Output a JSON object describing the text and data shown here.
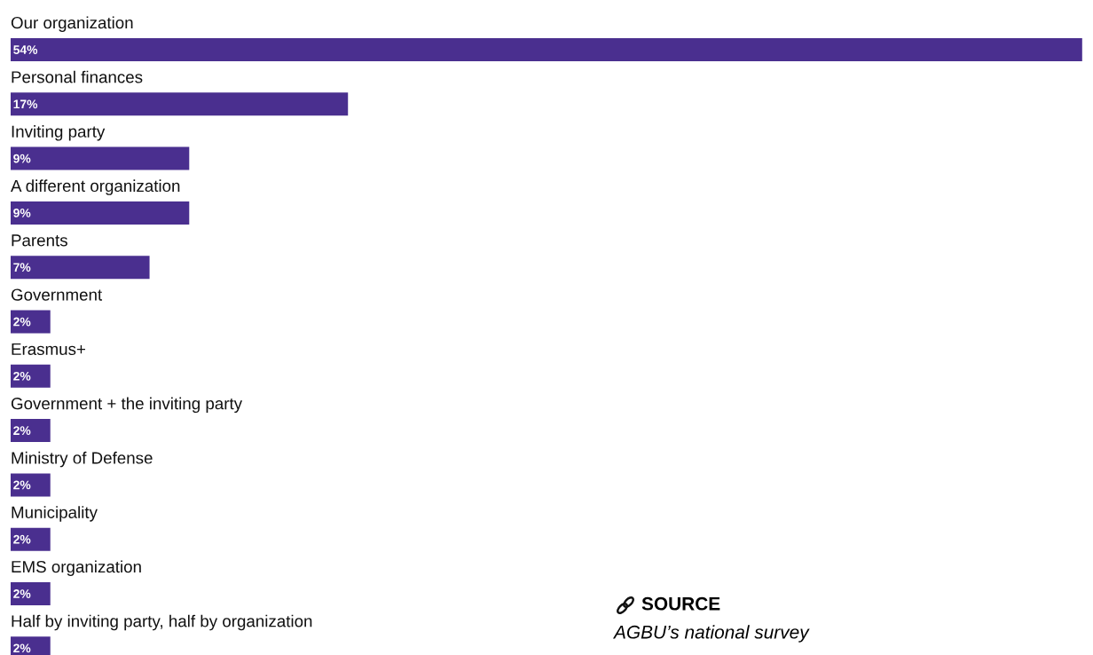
{
  "chart_data": {
    "type": "bar",
    "orientation": "horizontal",
    "color": "#4a2f8f",
    "categories": [
      "Our organization",
      "Personal finances",
      "Inviting party",
      "A different organization",
      "Parents",
      "Government",
      "Erasmus+",
      "Government + the inviting party",
      "Ministry of Defense",
      "Municipality",
      "EMS organization",
      "Half by inviting party, half by organization"
    ],
    "values": [
      54,
      17,
      9,
      9,
      7,
      2,
      2,
      2,
      2,
      2,
      2,
      2
    ],
    "value_labels": [
      "54%",
      "17%",
      "9%",
      "9%",
      "7%",
      "2%",
      "2%",
      "2%",
      "2%",
      "2%",
      "2%",
      "2%"
    ],
    "annotations": [
      "SOURCE",
      "AGBU’s national survey"
    ]
  }
}
